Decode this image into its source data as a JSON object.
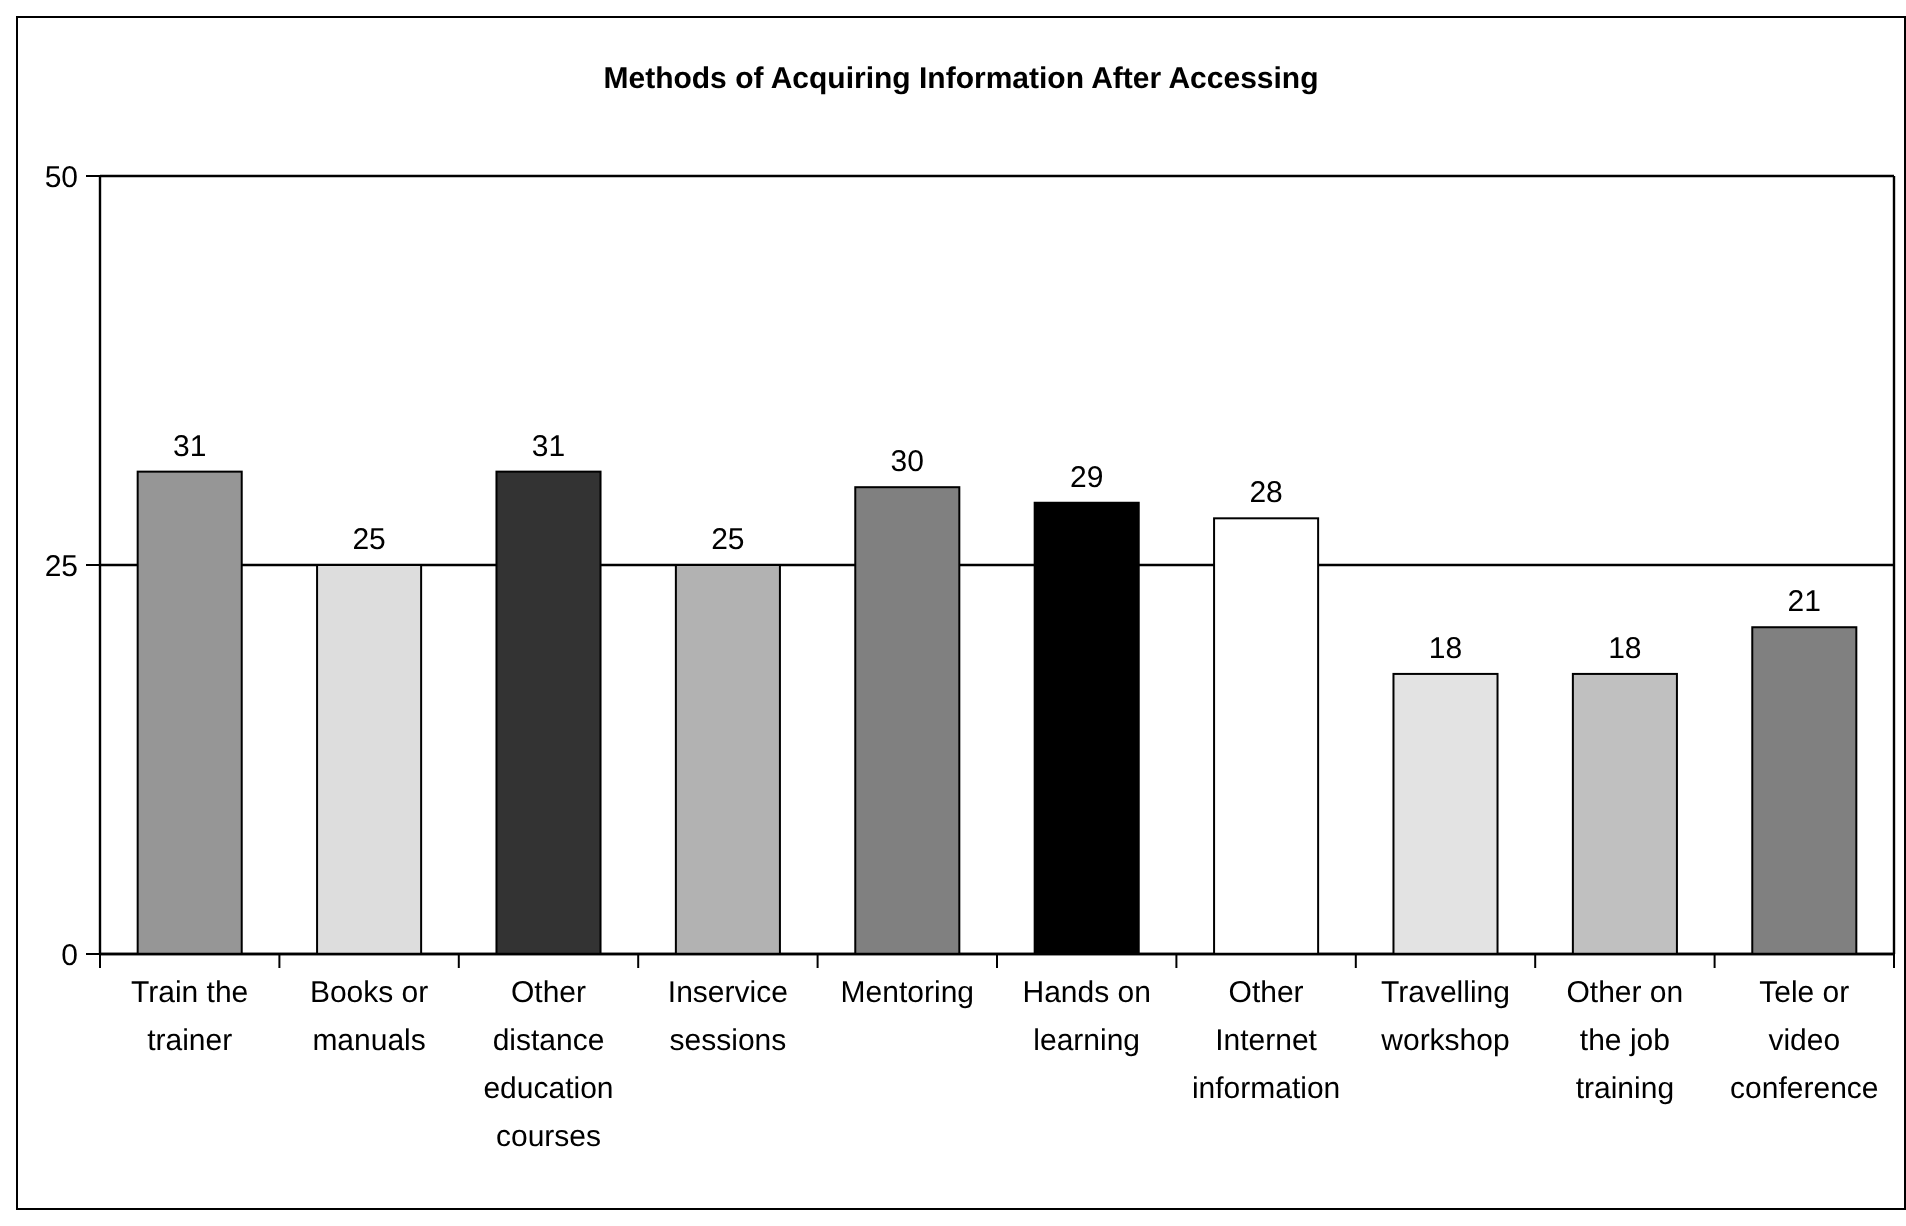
{
  "chart_data": {
    "type": "bar",
    "title": "Methods of Acquiring Information After Accessing",
    "categories": [
      "Train the trainer",
      "Books or manuals",
      "Other distance education courses",
      "Inservice sessions",
      "Mentoring",
      "Hands on learning",
      "Other Internet information",
      "Travelling workshop",
      "Other on the job training",
      "Tele or video conference"
    ],
    "values": [
      31,
      25,
      31,
      25,
      30,
      29,
      28,
      18,
      18,
      21
    ],
    "colors": [
      "#969696",
      "#dddddd",
      "#333333",
      "#b2b2b2",
      "#808080",
      "#000000",
      "#ffffff",
      "#e3e3e3",
      "#c0c0c0",
      "#808080"
    ],
    "ylim": [
      0,
      50
    ],
    "yticks": [
      0,
      25,
      50
    ],
    "grid": "y",
    "data_labels": true
  }
}
